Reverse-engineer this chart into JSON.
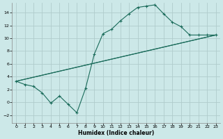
{
  "xlabel": "Humidex (Indice chaleur)",
  "bg_color": "#cce8e8",
  "grid_color": "#b0cccc",
  "line_color": "#1a6b5a",
  "xlim": [
    -0.5,
    23.5
  ],
  "ylim": [
    -3.2,
    15.5
  ],
  "xticks": [
    0,
    1,
    2,
    3,
    4,
    5,
    6,
    7,
    8,
    9,
    10,
    11,
    12,
    13,
    14,
    15,
    16,
    17,
    18,
    19,
    20,
    21,
    22,
    23
  ],
  "yticks": [
    -2,
    0,
    2,
    4,
    6,
    8,
    10,
    12,
    14
  ],
  "curve1_x": [
    0,
    1,
    2,
    3,
    4,
    5,
    6,
    7,
    8,
    9,
    10,
    11,
    12,
    13,
    14,
    15,
    16,
    17,
    18,
    19,
    20,
    21,
    22,
    23
  ],
  "curve1_y": [
    3.3,
    2.8,
    2.5,
    1.5,
    -0.1,
    1.0,
    -0.3,
    -1.6,
    2.2,
    7.5,
    10.7,
    11.4,
    12.7,
    13.8,
    14.8,
    15.0,
    15.2,
    13.8,
    12.5,
    11.8,
    10.5,
    10.5,
    10.5,
    10.5
  ],
  "line1_x": [
    0,
    23
  ],
  "line1_y": [
    3.3,
    10.5
  ],
  "line2_x": [
    0,
    23
  ],
  "line2_y": [
    3.3,
    10.5
  ]
}
